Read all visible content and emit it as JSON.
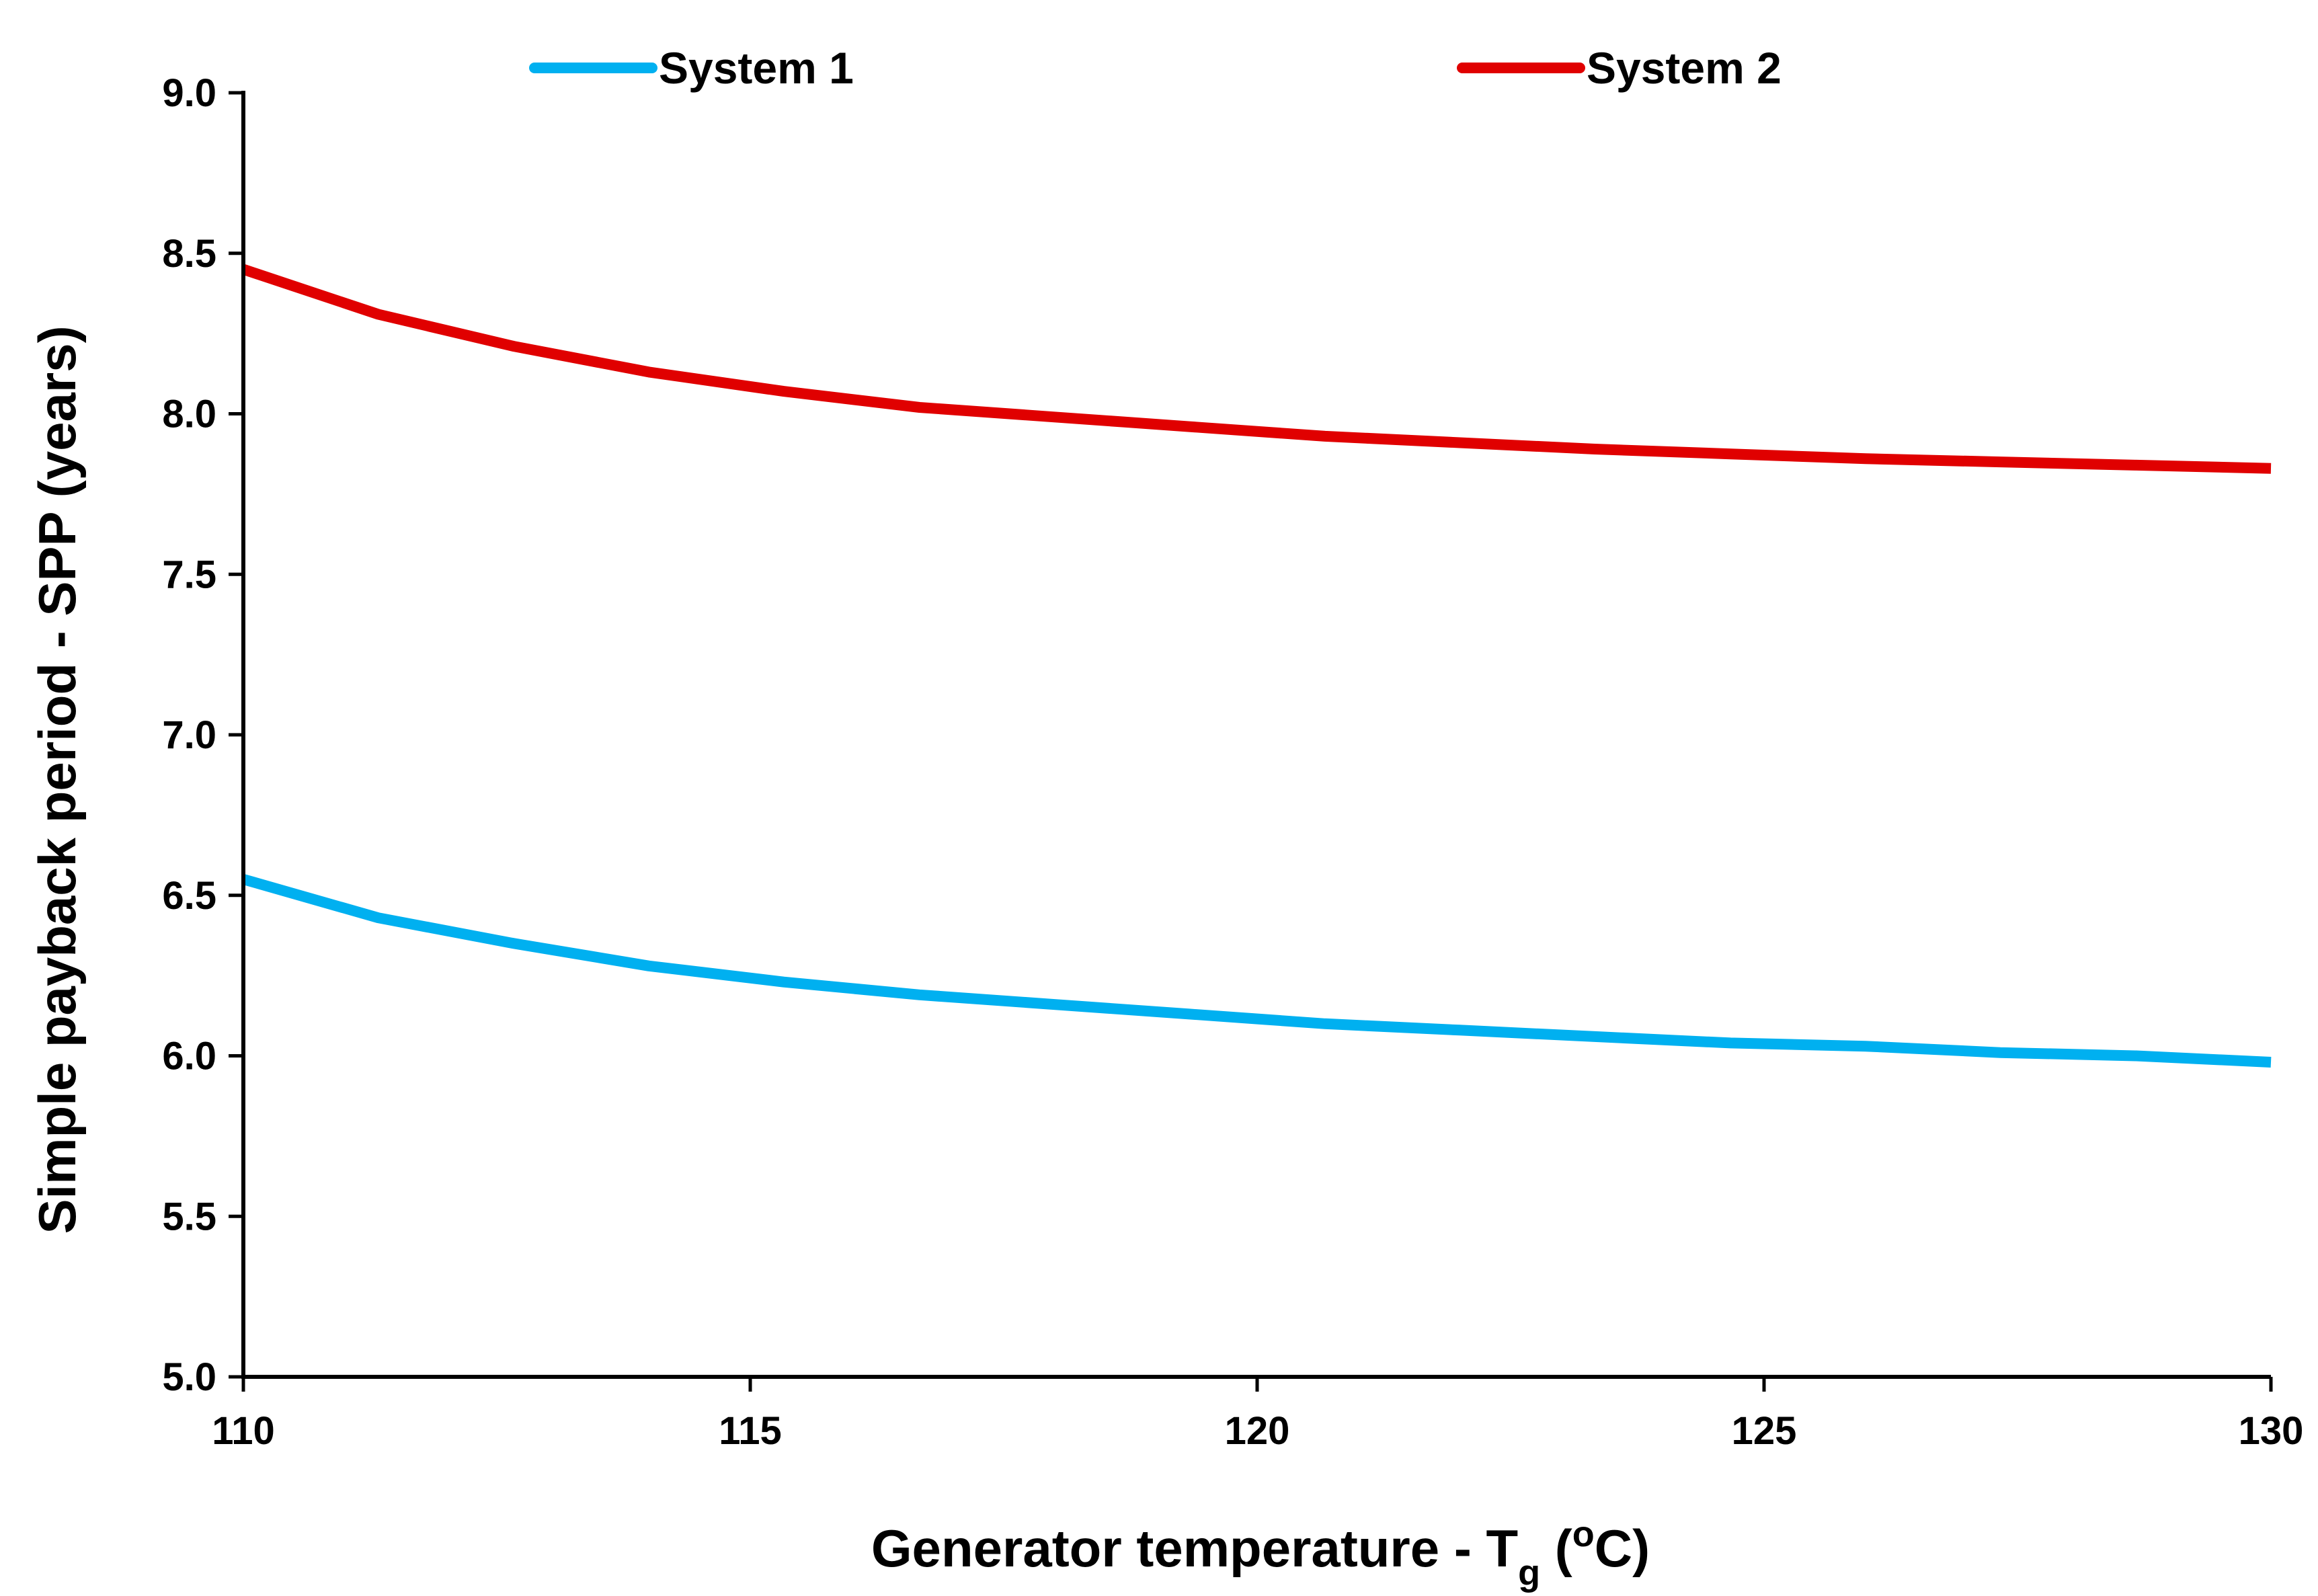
{
  "chart_data": {
    "type": "line",
    "title": "",
    "xlabel": {
      "main": "Generator temperature - T",
      "sub": "g",
      "open": " (",
      "sup": "o",
      "close": "C)"
    },
    "ylabel": "Simple payback period - SPP (years)",
    "xlim": [
      110,
      130
    ],
    "ylim": [
      5.0,
      9.0
    ],
    "xticks": [
      110,
      115,
      120,
      125,
      130
    ],
    "xtick_labels": [
      "110",
      "115",
      "120",
      "125",
      "130"
    ],
    "yticks": [
      5.0,
      5.5,
      6.0,
      6.5,
      7.0,
      7.5,
      8.0,
      8.5,
      9.0
    ],
    "ytick_labels": [
      "5.0",
      "5.5",
      "6.0",
      "6.5",
      "7.0",
      "7.5",
      "8.0",
      "8.5",
      "9.0"
    ],
    "legend_position": "top",
    "x": [
      110,
      111.33,
      112.67,
      114,
      115.33,
      116.67,
      118,
      119.33,
      120.67,
      122,
      123.33,
      124.67,
      126,
      127.33,
      128.67,
      130
    ],
    "series": [
      {
        "name": "System 1",
        "color": "#00b0f0",
        "values": [
          6.55,
          6.43,
          6.35,
          6.28,
          6.23,
          6.19,
          6.16,
          6.13,
          6.1,
          6.08,
          6.06,
          6.04,
          6.03,
          6.01,
          6.0,
          5.98
        ]
      },
      {
        "name": "System 2",
        "color": "#e00000",
        "values": [
          8.45,
          8.31,
          8.21,
          8.13,
          8.07,
          8.02,
          7.99,
          7.96,
          7.93,
          7.91,
          7.89,
          7.875,
          7.86,
          7.85,
          7.84,
          7.83
        ]
      }
    ]
  }
}
